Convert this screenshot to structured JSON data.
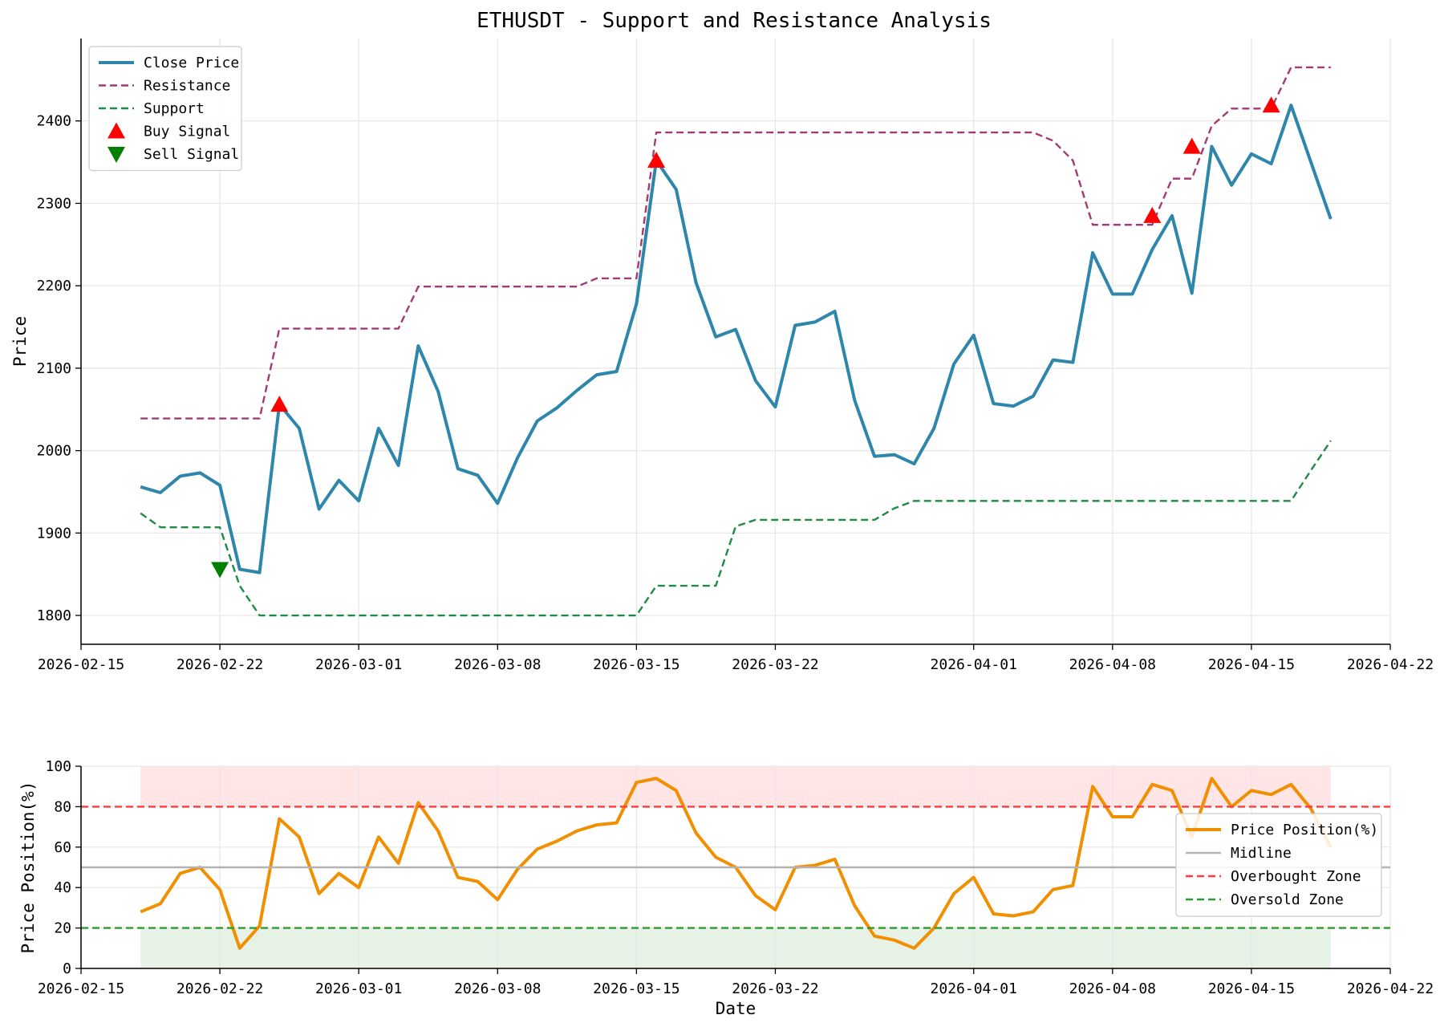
{
  "chart_data": [
    {
      "type": "line",
      "title": "ETHUSDT - Support and Resistance Analysis",
      "xlabel": "",
      "ylabel": "Price",
      "xlim": [
        "2026-02-15",
        "2026-04-22"
      ],
      "ylim": [
        1765,
        2500
      ],
      "x_ticks": [
        "2026-02-15",
        "2026-02-22",
        "2026-03-01",
        "2026-03-08",
        "2026-03-15",
        "2026-03-22",
        "2026-04-01",
        "2026-04-08",
        "2026-04-15",
        "2026-04-22"
      ],
      "y_ticks": [
        1800,
        1900,
        2000,
        2100,
        2200,
        2300,
        2400
      ],
      "grid": true,
      "legend_position": "top-left",
      "x": [
        "2026-02-18",
        "2026-02-19",
        "2026-02-20",
        "2026-02-21",
        "2026-02-22",
        "2026-02-23",
        "2026-02-24",
        "2026-02-25",
        "2026-02-26",
        "2026-02-27",
        "2026-02-28",
        "2026-03-01",
        "2026-03-02",
        "2026-03-03",
        "2026-03-04",
        "2026-03-05",
        "2026-03-06",
        "2026-03-07",
        "2026-03-08",
        "2026-03-09",
        "2026-03-10",
        "2026-03-11",
        "2026-03-12",
        "2026-03-13",
        "2026-03-14",
        "2026-03-15",
        "2026-03-16",
        "2026-03-17",
        "2026-03-18",
        "2026-03-19",
        "2026-03-20",
        "2026-03-21",
        "2026-03-22",
        "2026-03-23",
        "2026-03-24",
        "2026-03-25",
        "2026-03-26",
        "2026-03-27",
        "2026-03-28",
        "2026-03-29",
        "2026-03-30",
        "2026-03-31",
        "2026-04-01",
        "2026-04-02",
        "2026-04-03",
        "2026-04-04",
        "2026-04-05",
        "2026-04-06",
        "2026-04-07",
        "2026-04-08",
        "2026-04-09",
        "2026-04-10",
        "2026-04-11",
        "2026-04-12",
        "2026-04-13",
        "2026-04-14",
        "2026-04-15",
        "2026-04-16",
        "2026-04-17",
        "2026-04-18",
        "2026-04-19",
        "2026-04-20"
      ],
      "series": [
        {
          "name": "Close Price",
          "color": "#2e86ab",
          "style": "solid",
          "values": [
            1956,
            1949,
            1969,
            1973,
            1958,
            1856,
            1852,
            2056,
            2027,
            1929,
            1964,
            1939,
            2027,
            1982,
            2127,
            2072,
            1978,
            1970,
            1936,
            1991,
            2036,
            2052,
            2073,
            2092,
            2096,
            2178,
            2352,
            2317,
            2204,
            2138,
            2147,
            2085,
            2053,
            2152,
            2156,
            2169,
            2061,
            1993,
            1995,
            1984,
            2027,
            2105,
            2140,
            2057,
            2054,
            2066,
            2110,
            2107,
            2240,
            2190,
            2190,
            2244,
            2285,
            2191,
            2369,
            2322,
            2360,
            2348,
            2419,
            2350,
            2281,
            null
          ]
        },
        {
          "name": "Resistance",
          "color": "#a23b72",
          "style": "dashed",
          "values": [
            2039,
            2039,
            2039,
            2039,
            2039,
            2039,
            2039,
            2148,
            2148,
            2148,
            2148,
            2148,
            2148,
            2148,
            2199,
            2199,
            2199,
            2199,
            2199,
            2199,
            2199,
            2199,
            2199,
            2209,
            2209,
            2209,
            2386,
            2386,
            2386,
            2386,
            2386,
            2386,
            2386,
            2386,
            2386,
            2386,
            2386,
            2386,
            2386,
            2386,
            2386,
            2386,
            2386,
            2386,
            2386,
            2386,
            2376,
            2352,
            2274,
            2274,
            2274,
            2274,
            2330,
            2330,
            2394,
            2415,
            2415,
            2415,
            2465,
            2465,
            2465,
            null
          ]
        },
        {
          "name": "Support",
          "color": "#1e8a45",
          "style": "dashed",
          "values": [
            1924,
            1907,
            1907,
            1907,
            1907,
            1836,
            1800,
            1800,
            1800,
            1800,
            1800,
            1800,
            1800,
            1800,
            1800,
            1800,
            1800,
            1800,
            1800,
            1800,
            1800,
            1800,
            1800,
            1800,
            1800,
            1800,
            1836,
            1836,
            1836,
            1836,
            1908,
            1916,
            1916,
            1916,
            1916,
            1916,
            1916,
            1916,
            1930,
            1939,
            1939,
            1939,
            1939,
            1939,
            1939,
            1939,
            1939,
            1939,
            1939,
            1939,
            1939,
            1939,
            1939,
            1939,
            1939,
            1939,
            1939,
            1939,
            1939,
            1976,
            2012,
            null
          ]
        }
      ],
      "markers": [
        {
          "name": "Buy Signal",
          "shape": "triangle-up",
          "color": "#ff0000",
          "points": [
            [
              "2026-02-25",
              2056
            ],
            [
              "2026-03-16",
              2352
            ],
            [
              "2026-04-10",
              2285
            ],
            [
              "2026-04-12",
              2369
            ],
            [
              "2026-04-16",
              2419
            ]
          ]
        },
        {
          "name": "Sell Signal",
          "shape": "triangle-down",
          "color": "#008000",
          "points": [
            [
              "2026-02-22",
              1856
            ]
          ]
        }
      ]
    },
    {
      "type": "line",
      "title": "",
      "xlabel": "Date",
      "ylabel": "Price Position(%)",
      "xlim": [
        "2026-02-15",
        "2026-04-22"
      ],
      "ylim": [
        0,
        100
      ],
      "x_ticks": [
        "2026-02-15",
        "2026-02-22",
        "2026-03-01",
        "2026-03-08",
        "2026-03-15",
        "2026-03-22",
        "2026-04-01",
        "2026-04-08",
        "2026-04-15",
        "2026-04-22"
      ],
      "y_ticks": [
        0,
        20,
        40,
        60,
        80,
        100
      ],
      "grid": true,
      "legend_position": "right",
      "shaded_bands": [
        {
          "from": 80,
          "to": 100,
          "color": "#ff0000",
          "x_from": "2026-02-18",
          "x_to": "2026-04-19"
        },
        {
          "from": 0,
          "to": 20,
          "color": "#008000",
          "x_from": "2026-02-18",
          "x_to": "2026-04-19"
        }
      ],
      "x": [
        "2026-02-18",
        "2026-02-19",
        "2026-02-20",
        "2026-02-21",
        "2026-02-22",
        "2026-02-23",
        "2026-02-24",
        "2026-02-25",
        "2026-02-26",
        "2026-02-27",
        "2026-02-28",
        "2026-03-01",
        "2026-03-02",
        "2026-03-03",
        "2026-03-04",
        "2026-03-05",
        "2026-03-06",
        "2026-03-07",
        "2026-03-08",
        "2026-03-09",
        "2026-03-10",
        "2026-03-11",
        "2026-03-12",
        "2026-03-13",
        "2026-03-14",
        "2026-03-15",
        "2026-03-16",
        "2026-03-17",
        "2026-03-18",
        "2026-03-19",
        "2026-03-20",
        "2026-03-21",
        "2026-03-22",
        "2026-03-23",
        "2026-03-24",
        "2026-03-25",
        "2026-03-26",
        "2026-03-27",
        "2026-03-28",
        "2026-03-29",
        "2026-03-30",
        "2026-03-31",
        "2026-04-01",
        "2026-04-02",
        "2026-04-03",
        "2026-04-04",
        "2026-04-05",
        "2026-04-06",
        "2026-04-07",
        "2026-04-08",
        "2026-04-09",
        "2026-04-10",
        "2026-04-11",
        "2026-04-12",
        "2026-04-13",
        "2026-04-14",
        "2026-04-15",
        "2026-04-16",
        "2026-04-17",
        "2026-04-18",
        "2026-04-19",
        "2026-04-20"
      ],
      "series": [
        {
          "name": "Price Position(%)",
          "color": "#f18f01",
          "style": "solid",
          "values": [
            28,
            32,
            47,
            50,
            39,
            10,
            21,
            74,
            65,
            37,
            47,
            40,
            65,
            52,
            82,
            68,
            45,
            43,
            34,
            49,
            59,
            63,
            68,
            71,
            72,
            92,
            94,
            88,
            67,
            55,
            50,
            36,
            29,
            50,
            51,
            54,
            31,
            16,
            14,
            10,
            20,
            37,
            45,
            27,
            26,
            28,
            39,
            41,
            90,
            75,
            75,
            91,
            88,
            65,
            94,
            80,
            88,
            86,
            91,
            79,
            60,
            null
          ]
        },
        {
          "name": "Midline",
          "color": "#b3b3b3",
          "style": "solid",
          "constant": 50
        },
        {
          "name": "Overbought Zone",
          "color": "#ff3b3b",
          "style": "dashed",
          "constant": 80
        },
        {
          "name": "Oversold Zone",
          "color": "#2e9a2e",
          "style": "dashed",
          "constant": 20
        }
      ]
    }
  ]
}
